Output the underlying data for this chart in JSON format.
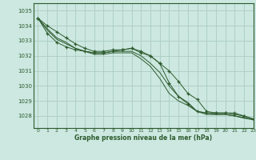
{
  "title": "Graphe pression niveau de la mer (hPa)",
  "background_color": "#cce8e0",
  "grid_color": "#aaccc4",
  "line_color": "#2d5a2d",
  "xlim": [
    -0.5,
    23
  ],
  "ylim": [
    1027.2,
    1035.5
  ],
  "yticks": [
    1028,
    1029,
    1030,
    1031,
    1032,
    1033,
    1034,
    1035
  ],
  "xticks": [
    0,
    1,
    2,
    3,
    4,
    5,
    6,
    7,
    8,
    9,
    10,
    11,
    12,
    13,
    14,
    15,
    16,
    17,
    18,
    19,
    20,
    21,
    22,
    23
  ],
  "series": [
    {
      "x": [
        0,
        1,
        2,
        3,
        4,
        5,
        6,
        7,
        8,
        9,
        10,
        11,
        12,
        13,
        14,
        15,
        16,
        17,
        18,
        19,
        20,
        21,
        22,
        23
      ],
      "y": [
        1034.5,
        1034.0,
        1033.6,
        1033.2,
        1032.8,
        1032.5,
        1032.3,
        1032.3,
        1032.4,
        1032.4,
        1032.5,
        1032.3,
        1032.0,
        1031.5,
        1031.0,
        1030.3,
        1029.5,
        1029.1,
        1028.3,
        1028.2,
        1028.2,
        1028.2,
        1028.0,
        1027.8
      ],
      "marker": "+",
      "has_markers_at": [
        0,
        1,
        2,
        3,
        4,
        5,
        6,
        7,
        8,
        9,
        10,
        11,
        12,
        13,
        14,
        15,
        16,
        17,
        18,
        19,
        20,
        21,
        22,
        23
      ]
    },
    {
      "x": [
        0,
        1,
        2,
        3,
        4,
        5,
        6,
        7,
        8,
        9,
        10,
        11,
        12,
        13,
        14,
        15,
        16,
        17,
        18,
        19,
        20,
        21,
        22,
        23
      ],
      "y": [
        1034.5,
        1033.8,
        1033.2,
        1032.9,
        1032.5,
        1032.3,
        1032.2,
        1032.2,
        1032.3,
        1032.3,
        1032.3,
        1032.0,
        1031.5,
        1030.9,
        1030.0,
        1029.3,
        1028.9,
        1028.3,
        1028.2,
        1028.1,
        1028.1,
        1028.0,
        1027.9,
        1027.75
      ],
      "marker": null
    },
    {
      "x": [
        0,
        1,
        2,
        3,
        4,
        5,
        6,
        7,
        8,
        9,
        10,
        11,
        12,
        13,
        14,
        15,
        16,
        17,
        18,
        19,
        20,
        21,
        22,
        23
      ],
      "y": [
        1034.5,
        1033.7,
        1033.1,
        1032.8,
        1032.5,
        1032.3,
        1032.1,
        1032.1,
        1032.2,
        1032.2,
        1032.2,
        1031.8,
        1031.3,
        1030.5,
        1029.5,
        1029.0,
        1028.7,
        1028.3,
        1028.1,
        1028.1,
        1028.1,
        1028.0,
        1027.85,
        1027.75
      ],
      "marker": null
    },
    {
      "x": [
        0,
        1,
        2,
        3,
        4,
        5,
        6,
        7,
        8,
        9,
        10,
        11,
        12,
        13,
        14,
        15,
        16,
        17,
        18,
        19,
        20,
        21,
        22,
        23
      ],
      "y": [
        1034.5,
        1033.5,
        1032.9,
        1032.6,
        1032.4,
        1032.3,
        1032.2,
        1032.2,
        1032.3,
        1032.4,
        1032.5,
        1032.2,
        1032.0,
        1031.5,
        1030.2,
        1029.3,
        1028.8,
        1028.3,
        1028.2,
        1028.2,
        1028.2,
        1028.1,
        1028.0,
        1027.8
      ],
      "marker": "+",
      "has_markers_at": [
        0,
        1,
        2,
        3,
        4,
        5,
        6,
        7,
        8,
        9,
        10,
        11,
        12,
        13,
        14,
        15,
        16,
        17,
        18,
        19,
        20,
        21,
        22,
        23
      ]
    }
  ]
}
